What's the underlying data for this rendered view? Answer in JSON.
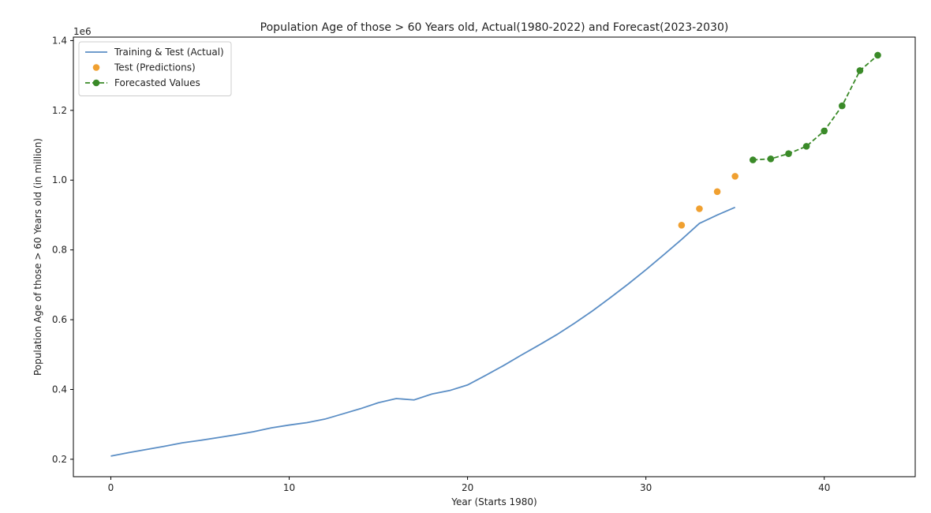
{
  "chart_data": {
    "type": "line",
    "title": "Population Age of those > 60 Years old, Actual(1980-2022) and Forecast(2023-2030)",
    "xlabel": "Year (Starts 1980)",
    "ylabel": "Population Age of those > 60 Years old (in million)",
    "y_offset_label": "1e6",
    "xlim": [
      -2.1,
      45.1
    ],
    "ylim": [
      0.15,
      1.41
    ],
    "x_ticks": [
      0,
      10,
      20,
      30,
      40
    ],
    "y_ticks": [
      0.2,
      0.4,
      0.6,
      0.8,
      1.0,
      1.2,
      1.4
    ],
    "x_tick_labels": [
      "0",
      "10",
      "20",
      "30",
      "40"
    ],
    "y_tick_labels": [
      "0.2",
      "0.4",
      "0.6",
      "0.8",
      "1.0",
      "1.2",
      "1.4"
    ],
    "legend_position": "top-left",
    "grid": false,
    "series": [
      {
        "name": "Training & Test (Actual)",
        "style": "line",
        "color": "#5b8ec5",
        "x": [
          0,
          1,
          2,
          3,
          4,
          5,
          6,
          7,
          8,
          9,
          10,
          11,
          12,
          13,
          14,
          15,
          16,
          17,
          18,
          19,
          20,
          21,
          22,
          23,
          24,
          25,
          26,
          27,
          28,
          29,
          30,
          31,
          32,
          33,
          34,
          35
        ],
        "y": [
          0.209,
          0.219,
          0.228,
          0.237,
          0.247,
          0.254,
          0.262,
          0.27,
          0.279,
          0.29,
          0.298,
          0.305,
          0.315,
          0.33,
          0.345,
          0.362,
          0.374,
          0.37,
          0.387,
          0.397,
          0.413,
          0.44,
          0.468,
          0.498,
          0.527,
          0.557,
          0.59,
          0.625,
          0.663,
          0.702,
          0.743,
          0.786,
          0.83,
          0.876,
          0.9,
          0.922
        ]
      },
      {
        "name": "Test (Predictions)",
        "style": "markers",
        "color": "#f0a030",
        "x": [
          32,
          33,
          34,
          35
        ],
        "y": [
          0.871,
          0.918,
          0.967,
          1.011
        ]
      },
      {
        "name": "Forecasted Values",
        "style": "dashed-markers",
        "color": "#3a8a28",
        "x": [
          36,
          37,
          38,
          39,
          40,
          41,
          42,
          43
        ],
        "y": [
          1.058,
          1.061,
          1.076,
          1.097,
          1.141,
          1.213,
          1.314,
          1.358
        ]
      }
    ]
  }
}
